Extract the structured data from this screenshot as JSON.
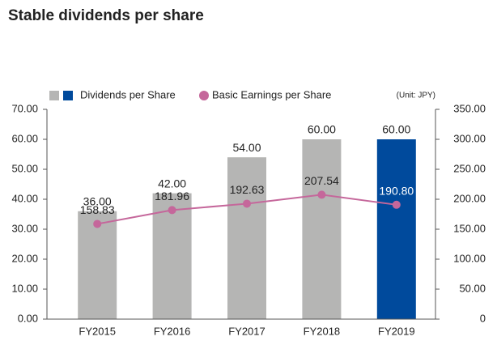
{
  "chart_data": {
    "type": "bar_line",
    "title": "Stable dividends per share",
    "unit_note": "(Unit: JPY)",
    "categories": [
      "FY2015",
      "FY2016",
      "FY2017",
      "FY2018",
      "FY2019"
    ],
    "legend_colors": [
      "#b5b5b4",
      "#004a9c"
    ],
    "series": [
      {
        "name": "Dividends per Share",
        "type": "bar",
        "axis": "y",
        "colors": [
          "#b5b5b4",
          "#b5b5b4",
          "#b5b5b4",
          "#b5b5b4",
          "#004a9c"
        ],
        "values": [
          36,
          42,
          54,
          60,
          60
        ],
        "value_labels": [
          "36.00",
          "42.00",
          "54.00",
          "60.00",
          "60.00"
        ]
      },
      {
        "name": "Basic Earnings per Share",
        "type": "line",
        "axis": "y2",
        "color": "#c5679b",
        "values": [
          158.83,
          181.96,
          192.63,
          207.54,
          190.8
        ],
        "value_labels": [
          "158.83",
          "181.96",
          "192.63",
          "207.54",
          "190.80"
        ]
      }
    ],
    "ylim": [
      0,
      70
    ],
    "yticks": [
      {
        "value": 0,
        "label": "0.00"
      },
      {
        "value": 10,
        "label": "10.00"
      },
      {
        "value": 20,
        "label": "20.00"
      },
      {
        "value": 30,
        "label": "30.00"
      },
      {
        "value": 40,
        "label": "40.00"
      },
      {
        "value": 50,
        "label": "50.00"
      },
      {
        "value": 60,
        "label": "60.00"
      },
      {
        "value": 70,
        "label": "70.00"
      }
    ],
    "y2lim": [
      0,
      350
    ],
    "y2ticks": [
      0,
      {
        "value": 50,
        "label": "50.00"
      },
      {
        "value": 100,
        "label": "100.00"
      },
      {
        "value": 150,
        "label": "150.00"
      },
      {
        "value": 200,
        "label": "200.00"
      },
      {
        "value": 250,
        "label": "250.00"
      },
      {
        "value": 300,
        "label": "300.00"
      },
      {
        "value": 350,
        "label": "350.00"
      }
    ]
  }
}
